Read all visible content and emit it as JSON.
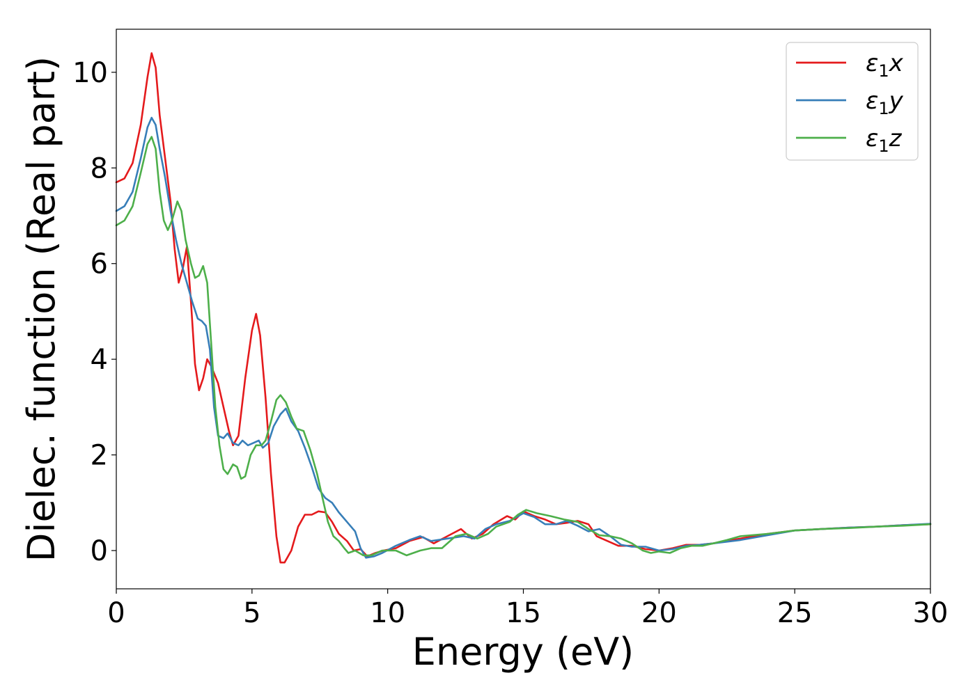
{
  "chart_data": {
    "type": "line",
    "title": "",
    "xlabel": "Energy (eV)",
    "ylabel": "Dielec. function (Real part)",
    "xlim": [
      0,
      30
    ],
    "ylim": [
      -0.8,
      10.9
    ],
    "xticks": [
      0,
      5,
      10,
      15,
      20,
      25,
      30
    ],
    "yticks": [
      0,
      2,
      4,
      6,
      8,
      10
    ],
    "grid": false,
    "legend_position": "top-right",
    "series": [
      {
        "name": "ε₁x",
        "legend_main": "ε",
        "legend_sub": "1",
        "legend_suffix": "x",
        "color": "#e41a1c",
        "points": [
          [
            0,
            7.7
          ],
          [
            0.3,
            7.78
          ],
          [
            0.6,
            8.1
          ],
          [
            0.9,
            8.9
          ],
          [
            1.15,
            9.9
          ],
          [
            1.3,
            10.4
          ],
          [
            1.45,
            10.1
          ],
          [
            1.6,
            9.1
          ],
          [
            1.8,
            8.2
          ],
          [
            2.0,
            7.3
          ],
          [
            2.15,
            6.3
          ],
          [
            2.3,
            5.6
          ],
          [
            2.45,
            5.9
          ],
          [
            2.6,
            6.35
          ],
          [
            2.75,
            5.2
          ],
          [
            2.9,
            3.9
          ],
          [
            3.05,
            3.35
          ],
          [
            3.2,
            3.6
          ],
          [
            3.35,
            4.0
          ],
          [
            3.5,
            3.85
          ],
          [
            3.75,
            3.5
          ],
          [
            3.95,
            3.0
          ],
          [
            4.15,
            2.5
          ],
          [
            4.3,
            2.2
          ],
          [
            4.5,
            2.4
          ],
          [
            4.75,
            3.6
          ],
          [
            5.0,
            4.6
          ],
          [
            5.15,
            4.95
          ],
          [
            5.3,
            4.5
          ],
          [
            5.5,
            3.2
          ],
          [
            5.7,
            1.6
          ],
          [
            5.9,
            0.3
          ],
          [
            6.05,
            -0.25
          ],
          [
            6.2,
            -0.25
          ],
          [
            6.45,
            0.0
          ],
          [
            6.7,
            0.5
          ],
          [
            6.95,
            0.75
          ],
          [
            7.2,
            0.75
          ],
          [
            7.45,
            0.82
          ],
          [
            7.7,
            0.8
          ],
          [
            7.95,
            0.6
          ],
          [
            8.2,
            0.35
          ],
          [
            8.5,
            0.2
          ],
          [
            8.75,
            0.0
          ],
          [
            9.0,
            0.03
          ],
          [
            9.25,
            -0.12
          ],
          [
            9.55,
            -0.05
          ],
          [
            9.85,
            0.0
          ],
          [
            10.3,
            0.05
          ],
          [
            10.8,
            0.2
          ],
          [
            11.3,
            0.28
          ],
          [
            11.7,
            0.15
          ],
          [
            12.2,
            0.3
          ],
          [
            12.7,
            0.45
          ],
          [
            13.1,
            0.25
          ],
          [
            13.5,
            0.35
          ],
          [
            13.9,
            0.55
          ],
          [
            14.4,
            0.72
          ],
          [
            14.7,
            0.65
          ],
          [
            15.0,
            0.82
          ],
          [
            15.4,
            0.72
          ],
          [
            15.8,
            0.65
          ],
          [
            16.2,
            0.55
          ],
          [
            16.6,
            0.58
          ],
          [
            17.0,
            0.62
          ],
          [
            17.4,
            0.55
          ],
          [
            17.7,
            0.3
          ],
          [
            18.1,
            0.2
          ],
          [
            18.5,
            0.1
          ],
          [
            19.0,
            0.1
          ],
          [
            19.5,
            0.03
          ],
          [
            20.0,
            0.0
          ],
          [
            20.5,
            0.05
          ],
          [
            21.0,
            0.12
          ],
          [
            21.5,
            0.12
          ],
          [
            22.0,
            0.15
          ],
          [
            23.0,
            0.25
          ],
          [
            24.0,
            0.35
          ],
          [
            25.0,
            0.42
          ],
          [
            26.0,
            0.45
          ],
          [
            27.0,
            0.48
          ],
          [
            28.0,
            0.5
          ],
          [
            29.0,
            0.53
          ],
          [
            30.0,
            0.55
          ]
        ]
      },
      {
        "name": "ε₁y",
        "legend_main": "ε",
        "legend_sub": "1",
        "legend_suffix": "y",
        "color": "#377eb8",
        "points": [
          [
            0,
            7.1
          ],
          [
            0.3,
            7.2
          ],
          [
            0.6,
            7.5
          ],
          [
            0.9,
            8.2
          ],
          [
            1.15,
            8.85
          ],
          [
            1.3,
            9.05
          ],
          [
            1.45,
            8.9
          ],
          [
            1.6,
            8.4
          ],
          [
            1.8,
            7.8
          ],
          [
            2.0,
            7.1
          ],
          [
            2.2,
            6.5
          ],
          [
            2.4,
            6.0
          ],
          [
            2.6,
            5.6
          ],
          [
            2.8,
            5.2
          ],
          [
            3.0,
            4.85
          ],
          [
            3.15,
            4.8
          ],
          [
            3.3,
            4.7
          ],
          [
            3.45,
            4.2
          ],
          [
            3.6,
            3.0
          ],
          [
            3.75,
            2.4
          ],
          [
            3.95,
            2.35
          ],
          [
            4.1,
            2.45
          ],
          [
            4.3,
            2.25
          ],
          [
            4.5,
            2.2
          ],
          [
            4.65,
            2.3
          ],
          [
            4.85,
            2.2
          ],
          [
            5.05,
            2.25
          ],
          [
            5.25,
            2.3
          ],
          [
            5.4,
            2.15
          ],
          [
            5.6,
            2.25
          ],
          [
            5.8,
            2.6
          ],
          [
            6.05,
            2.85
          ],
          [
            6.25,
            2.97
          ],
          [
            6.45,
            2.7
          ],
          [
            6.7,
            2.5
          ],
          [
            6.95,
            2.15
          ],
          [
            7.2,
            1.75
          ],
          [
            7.45,
            1.3
          ],
          [
            7.7,
            1.1
          ],
          [
            7.95,
            1.0
          ],
          [
            8.2,
            0.8
          ],
          [
            8.5,
            0.6
          ],
          [
            8.8,
            0.4
          ],
          [
            9.0,
            0.05
          ],
          [
            9.2,
            -0.15
          ],
          [
            9.5,
            -0.12
          ],
          [
            9.8,
            -0.05
          ],
          [
            10.3,
            0.1
          ],
          [
            10.8,
            0.22
          ],
          [
            11.2,
            0.3
          ],
          [
            11.6,
            0.2
          ],
          [
            12.2,
            0.25
          ],
          [
            12.8,
            0.3
          ],
          [
            13.2,
            0.25
          ],
          [
            13.6,
            0.45
          ],
          [
            14.0,
            0.55
          ],
          [
            14.5,
            0.62
          ],
          [
            15.0,
            0.78
          ],
          [
            15.4,
            0.7
          ],
          [
            15.8,
            0.55
          ],
          [
            16.2,
            0.55
          ],
          [
            16.6,
            0.62
          ],
          [
            17.0,
            0.52
          ],
          [
            17.4,
            0.4
          ],
          [
            17.8,
            0.45
          ],
          [
            18.2,
            0.3
          ],
          [
            18.6,
            0.12
          ],
          [
            19.0,
            0.08
          ],
          [
            19.5,
            0.08
          ],
          [
            20.0,
            0.0
          ],
          [
            20.5,
            0.03
          ],
          [
            21.0,
            0.1
          ],
          [
            21.5,
            0.12
          ],
          [
            22.0,
            0.15
          ],
          [
            23.0,
            0.22
          ],
          [
            24.0,
            0.32
          ],
          [
            25.0,
            0.42
          ],
          [
            26.0,
            0.45
          ],
          [
            27.0,
            0.48
          ],
          [
            28.0,
            0.5
          ],
          [
            29.0,
            0.53
          ],
          [
            30.0,
            0.56
          ]
        ]
      },
      {
        "name": "ε₁z",
        "legend_main": "ε",
        "legend_sub": "1",
        "legend_suffix": "z",
        "color": "#4daf4a",
        "points": [
          [
            0,
            6.8
          ],
          [
            0.3,
            6.9
          ],
          [
            0.6,
            7.2
          ],
          [
            0.9,
            7.9
          ],
          [
            1.15,
            8.5
          ],
          [
            1.3,
            8.65
          ],
          [
            1.45,
            8.4
          ],
          [
            1.6,
            7.5
          ],
          [
            1.75,
            6.9
          ],
          [
            1.9,
            6.7
          ],
          [
            2.05,
            6.9
          ],
          [
            2.25,
            7.3
          ],
          [
            2.4,
            7.1
          ],
          [
            2.55,
            6.5
          ],
          [
            2.75,
            6.0
          ],
          [
            2.9,
            5.7
          ],
          [
            3.05,
            5.75
          ],
          [
            3.2,
            5.95
          ],
          [
            3.35,
            5.6
          ],
          [
            3.5,
            4.3
          ],
          [
            3.65,
            3.0
          ],
          [
            3.8,
            2.2
          ],
          [
            3.95,
            1.7
          ],
          [
            4.1,
            1.6
          ],
          [
            4.3,
            1.8
          ],
          [
            4.45,
            1.75
          ],
          [
            4.6,
            1.5
          ],
          [
            4.75,
            1.55
          ],
          [
            4.95,
            2.0
          ],
          [
            5.15,
            2.2
          ],
          [
            5.35,
            2.2
          ],
          [
            5.5,
            2.3
          ],
          [
            5.7,
            2.7
          ],
          [
            5.9,
            3.15
          ],
          [
            6.05,
            3.25
          ],
          [
            6.25,
            3.1
          ],
          [
            6.45,
            2.8
          ],
          [
            6.65,
            2.55
          ],
          [
            6.9,
            2.5
          ],
          [
            7.15,
            2.1
          ],
          [
            7.4,
            1.6
          ],
          [
            7.6,
            1.1
          ],
          [
            7.8,
            0.6
          ],
          [
            8.0,
            0.3
          ],
          [
            8.2,
            0.2
          ],
          [
            8.4,
            0.05
          ],
          [
            8.55,
            -0.05
          ],
          [
            8.8,
            0.0
          ],
          [
            9.1,
            -0.1
          ],
          [
            9.4,
            -0.1
          ],
          [
            9.8,
            0.0
          ],
          [
            10.3,
            0.0
          ],
          [
            10.7,
            -0.1
          ],
          [
            11.2,
            0.0
          ],
          [
            11.6,
            0.05
          ],
          [
            12.0,
            0.05
          ],
          [
            12.5,
            0.3
          ],
          [
            12.9,
            0.35
          ],
          [
            13.3,
            0.25
          ],
          [
            13.7,
            0.35
          ],
          [
            14.0,
            0.5
          ],
          [
            14.5,
            0.6
          ],
          [
            14.8,
            0.75
          ],
          [
            15.1,
            0.85
          ],
          [
            15.5,
            0.78
          ],
          [
            16.0,
            0.72
          ],
          [
            16.5,
            0.65
          ],
          [
            17.0,
            0.6
          ],
          [
            17.4,
            0.45
          ],
          [
            17.8,
            0.32
          ],
          [
            18.2,
            0.3
          ],
          [
            18.6,
            0.25
          ],
          [
            19.0,
            0.15
          ],
          [
            19.4,
            0.0
          ],
          [
            19.7,
            -0.05
          ],
          [
            20.0,
            -0.02
          ],
          [
            20.4,
            -0.05
          ],
          [
            20.8,
            0.05
          ],
          [
            21.2,
            0.1
          ],
          [
            21.6,
            0.1
          ],
          [
            22.0,
            0.15
          ],
          [
            22.5,
            0.22
          ],
          [
            23.0,
            0.3
          ],
          [
            24.0,
            0.35
          ],
          [
            25.0,
            0.42
          ],
          [
            26.0,
            0.45
          ],
          [
            27.0,
            0.47
          ],
          [
            28.0,
            0.5
          ],
          [
            29.0,
            0.52
          ],
          [
            30.0,
            0.55
          ]
        ]
      }
    ]
  }
}
